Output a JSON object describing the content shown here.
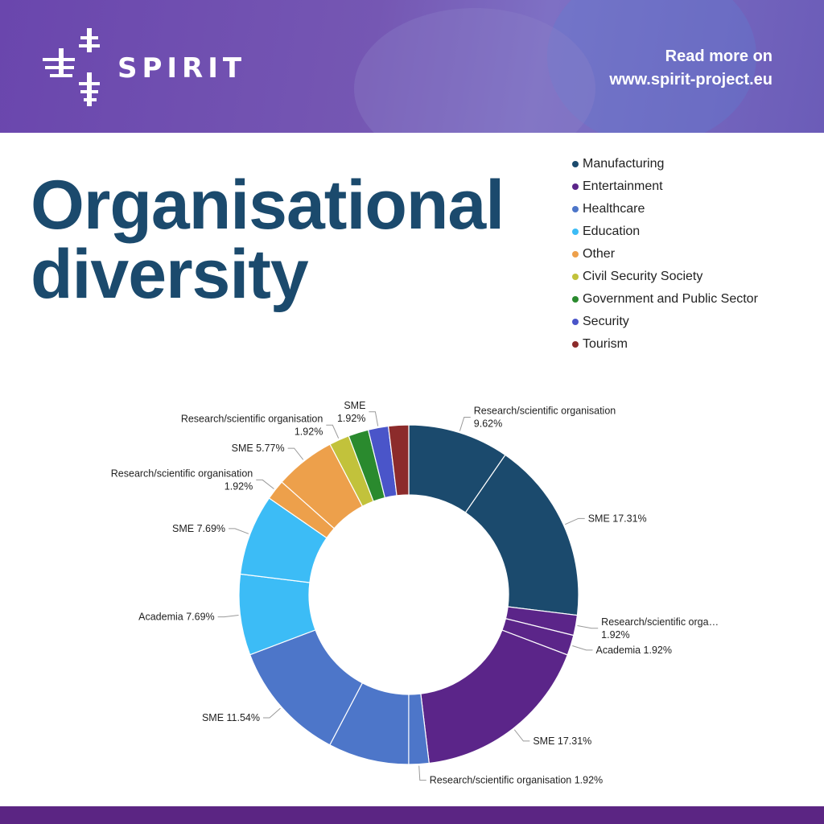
{
  "header": {
    "logo_text": "SPIRIT",
    "read_more_line1": "Read more on",
    "read_more_line2": "www.spirit-project.eu"
  },
  "title_line1": "Organisational",
  "title_line2": "diversity",
  "chart_data": {
    "type": "pie",
    "subtype": "donut",
    "legend_placement": "top-right",
    "legend": [
      {
        "name": "Manufacturing",
        "color": "#1b4a6d"
      },
      {
        "name": "Entertainment",
        "color": "#5b2589"
      },
      {
        "name": "Healthcare",
        "color": "#4d76c9"
      },
      {
        "name": "Education",
        "color": "#3cbcf6"
      },
      {
        "name": "Other",
        "color": "#eda04b"
      },
      {
        "name": " Civil Security Society",
        "color": "#c2c23b"
      },
      {
        "name": "Government and Public Sector",
        "color": "#2a8a2e"
      },
      {
        "name": "Security",
        "color": "#4a55c9"
      },
      {
        "name": "Tourism",
        "color": "#8c2b2b"
      }
    ],
    "slices": [
      {
        "group": 0,
        "value": 9.62,
        "lines": [
          "Research/scientific organisation",
          "9.62%"
        ]
      },
      {
        "group": 0,
        "value": 17.31,
        "lines": [
          "SME 17.31%"
        ]
      },
      {
        "group": 1,
        "value": 1.92,
        "lines": [
          "Research/scientific orga…",
          "1.92%"
        ]
      },
      {
        "group": 1,
        "value": 1.92,
        "lines": [
          "Academia 1.92%"
        ]
      },
      {
        "group": 1,
        "value": 17.31,
        "lines": [
          "SME 17.31%"
        ]
      },
      {
        "group": 2,
        "value": 1.92,
        "lines": [
          "Research/scientific organisation 1.92%"
        ]
      },
      {
        "group": 2,
        "value": 7.69,
        "lines": []
      },
      {
        "group": 2,
        "value": 11.54,
        "lines": [
          "SME 11.54%"
        ]
      },
      {
        "group": 3,
        "value": 7.69,
        "lines": [
          "Academia 7.69%"
        ]
      },
      {
        "group": 3,
        "value": 7.69,
        "lines": [
          "SME 7.69%"
        ]
      },
      {
        "group": 4,
        "value": 1.92,
        "lines": [
          "Research/scientific organisation",
          "1.92%"
        ]
      },
      {
        "group": 4,
        "value": 5.77,
        "lines": [
          "SME 5.77%"
        ]
      },
      {
        "group": 5,
        "value": 1.92,
        "lines": [
          "Research/scientific organisation",
          "1.92%"
        ]
      },
      {
        "group": 6,
        "value": 1.92,
        "lines": []
      },
      {
        "group": 7,
        "value": 1.92,
        "lines": [
          "SME",
          "1.92%"
        ]
      },
      {
        "group": 8,
        "value": 1.92,
        "lines": []
      }
    ]
  }
}
